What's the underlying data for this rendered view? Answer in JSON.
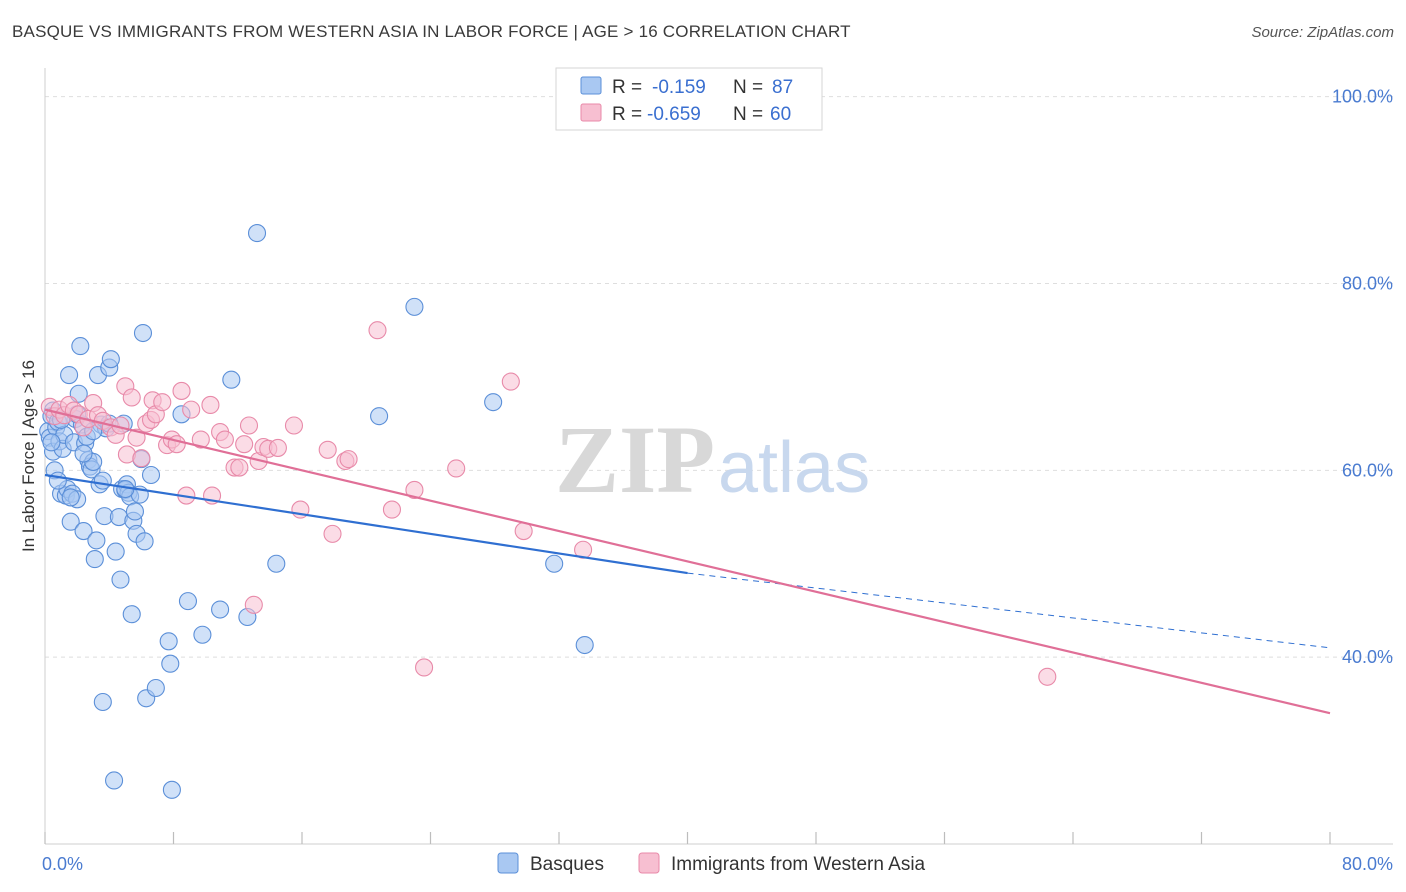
{
  "header": {
    "title": "BASQUE VS IMMIGRANTS FROM WESTERN ASIA IN LABOR FORCE | AGE > 16 CORRELATION CHART",
    "source": "Source: ZipAtlas.com"
  },
  "watermark": {
    "zip": "ZIP",
    "atlas": "atlas"
  },
  "chart_data": {
    "type": "scatter",
    "ylabel": "In Labor Force | Age > 16",
    "xlim": [
      0,
      80
    ],
    "ylim": [
      20,
      102
    ],
    "x_tick_labels": [
      "0.0%",
      "80.0%"
    ],
    "y_ticks": [
      40,
      60,
      80,
      100
    ],
    "y_tick_labels": [
      "40.0%",
      "60.0%",
      "80.0%",
      "100.0%"
    ],
    "grid": true,
    "legend_placement": "top-center",
    "legend": {
      "rows": [
        {
          "r_label": "R =",
          "r_value": "-0.159",
          "n_label": "N =",
          "n_value": "87"
        },
        {
          "r_label": "R =",
          "r_value": "-0.659",
          "n_label": "N =",
          "n_value": "60"
        }
      ]
    },
    "colors": {
      "basques_fill": "#a9c8f2",
      "basques_stroke": "#5b8fd8",
      "basques_line": "#2f6fd1",
      "wa_fill": "#f7bfd1",
      "wa_stroke": "#e88aa9",
      "wa_line": "#e06f97"
    },
    "series": [
      {
        "name": "Basques",
        "trend": {
          "x": [
            0,
            40
          ],
          "y": [
            59.5,
            49.0
          ],
          "dashed_to": [
            80,
            41.0
          ]
        },
        "points": [
          [
            0.2,
            64.2
          ],
          [
            0.3,
            63.5
          ],
          [
            0.4,
            65.8
          ],
          [
            0.5,
            66.4
          ],
          [
            0.5,
            62.0
          ],
          [
            0.6,
            60.0
          ],
          [
            0.7,
            64.6
          ],
          [
            0.8,
            65.2
          ],
          [
            0.9,
            63.1
          ],
          [
            1.0,
            57.5
          ],
          [
            1.1,
            62.3
          ],
          [
            1.2,
            63.8
          ],
          [
            1.3,
            57.3
          ],
          [
            1.4,
            58.0
          ],
          [
            1.5,
            70.2
          ],
          [
            1.6,
            54.5
          ],
          [
            1.7,
            57.5
          ],
          [
            1.8,
            63.0
          ],
          [
            1.9,
            65.5
          ],
          [
            2.0,
            56.9
          ],
          [
            2.1,
            68.2
          ],
          [
            2.2,
            73.3
          ],
          [
            2.3,
            64.9
          ],
          [
            2.4,
            53.5
          ],
          [
            2.5,
            62.9
          ],
          [
            2.6,
            63.6
          ],
          [
            2.7,
            61.1
          ],
          [
            2.8,
            60.4
          ],
          [
            2.9,
            60.1
          ],
          [
            3.0,
            60.9
          ],
          [
            3.1,
            50.5
          ],
          [
            3.2,
            52.5
          ],
          [
            3.3,
            70.2
          ],
          [
            3.4,
            58.5
          ],
          [
            3.5,
            64.9
          ],
          [
            3.6,
            35.2
          ],
          [
            3.7,
            55.1
          ],
          [
            3.8,
            64.5
          ],
          [
            4.0,
            71.0
          ],
          [
            4.1,
            71.9
          ],
          [
            4.3,
            26.8
          ],
          [
            4.4,
            51.3
          ],
          [
            4.6,
            55.0
          ],
          [
            4.7,
            48.3
          ],
          [
            4.8,
            58.0
          ],
          [
            4.9,
            65.0
          ],
          [
            5.0,
            57.9
          ],
          [
            5.1,
            58.5
          ],
          [
            5.2,
            57.6
          ],
          [
            5.3,
            57.2
          ],
          [
            5.4,
            44.6
          ],
          [
            5.5,
            54.6
          ],
          [
            5.6,
            55.6
          ],
          [
            5.7,
            53.2
          ],
          [
            5.9,
            57.4
          ],
          [
            6.0,
            61.2
          ],
          [
            6.1,
            74.7
          ],
          [
            6.2,
            52.4
          ],
          [
            6.3,
            35.6
          ],
          [
            6.6,
            59.5
          ],
          [
            6.9,
            36.7
          ],
          [
            7.7,
            41.7
          ],
          [
            7.8,
            39.3
          ],
          [
            7.9,
            25.8
          ],
          [
            8.5,
            66.0
          ],
          [
            8.9,
            46.0
          ],
          [
            9.8,
            42.4
          ],
          [
            10.9,
            45.1
          ],
          [
            11.6,
            69.7
          ],
          [
            12.6,
            44.3
          ],
          [
            13.2,
            85.4
          ],
          [
            14.4,
            50.0
          ],
          [
            20.8,
            65.8
          ],
          [
            23.0,
            77.5
          ],
          [
            27.9,
            67.3
          ],
          [
            31.7,
            50.0
          ],
          [
            33.6,
            41.3
          ],
          [
            0.4,
            63.0
          ],
          [
            1.0,
            65.4
          ],
          [
            2.0,
            66.0
          ],
          [
            3.0,
            64.2
          ],
          [
            4.0,
            65.0
          ],
          [
            5.0,
            58.0
          ],
          [
            0.8,
            58.9
          ],
          [
            1.6,
            57.1
          ],
          [
            2.4,
            61.8
          ],
          [
            3.6,
            58.9
          ]
        ]
      },
      {
        "name": "Immigrants from Western Asia",
        "trend": {
          "x": [
            0,
            80
          ],
          "y": [
            66.5,
            34.0
          ]
        },
        "points": [
          [
            0.3,
            66.8
          ],
          [
            0.6,
            65.8
          ],
          [
            0.9,
            66.5
          ],
          [
            1.2,
            65.9
          ],
          [
            1.5,
            67.0
          ],
          [
            1.8,
            66.4
          ],
          [
            2.1,
            66.0
          ],
          [
            2.4,
            64.6
          ],
          [
            2.7,
            65.5
          ],
          [
            3.0,
            67.2
          ],
          [
            3.3,
            65.9
          ],
          [
            3.6,
            65.3
          ],
          [
            4.1,
            64.6
          ],
          [
            4.4,
            63.8
          ],
          [
            4.7,
            64.8
          ],
          [
            5.0,
            69.0
          ],
          [
            5.1,
            61.7
          ],
          [
            5.4,
            67.8
          ],
          [
            5.7,
            63.5
          ],
          [
            6.0,
            61.3
          ],
          [
            6.3,
            65.0
          ],
          [
            6.6,
            65.4
          ],
          [
            6.7,
            67.5
          ],
          [
            6.9,
            66.0
          ],
          [
            7.3,
            67.3
          ],
          [
            7.6,
            62.7
          ],
          [
            7.9,
            63.3
          ],
          [
            8.2,
            62.8
          ],
          [
            8.5,
            68.5
          ],
          [
            8.8,
            57.3
          ],
          [
            9.1,
            66.5
          ],
          [
            9.7,
            63.3
          ],
          [
            10.3,
            67.0
          ],
          [
            10.4,
            57.3
          ],
          [
            10.9,
            64.1
          ],
          [
            11.2,
            63.3
          ],
          [
            11.8,
            60.3
          ],
          [
            12.1,
            60.3
          ],
          [
            12.4,
            62.8
          ],
          [
            12.7,
            64.8
          ],
          [
            13.0,
            45.6
          ],
          [
            13.3,
            61.0
          ],
          [
            13.6,
            62.5
          ],
          [
            13.9,
            62.3
          ],
          [
            14.5,
            62.4
          ],
          [
            15.5,
            64.8
          ],
          [
            15.9,
            55.8
          ],
          [
            17.6,
            62.2
          ],
          [
            17.9,
            53.2
          ],
          [
            18.7,
            61.0
          ],
          [
            18.9,
            61.2
          ],
          [
            20.7,
            75.0
          ],
          [
            21.6,
            55.8
          ],
          [
            23.0,
            57.9
          ],
          [
            23.6,
            38.9
          ],
          [
            25.6,
            60.2
          ],
          [
            29.0,
            69.5
          ],
          [
            29.8,
            53.5
          ],
          [
            33.5,
            51.5
          ],
          [
            62.4,
            37.9
          ]
        ]
      }
    ]
  },
  "bottom_legend": {
    "items": [
      "Basques",
      "Immigrants from Western Asia"
    ]
  }
}
